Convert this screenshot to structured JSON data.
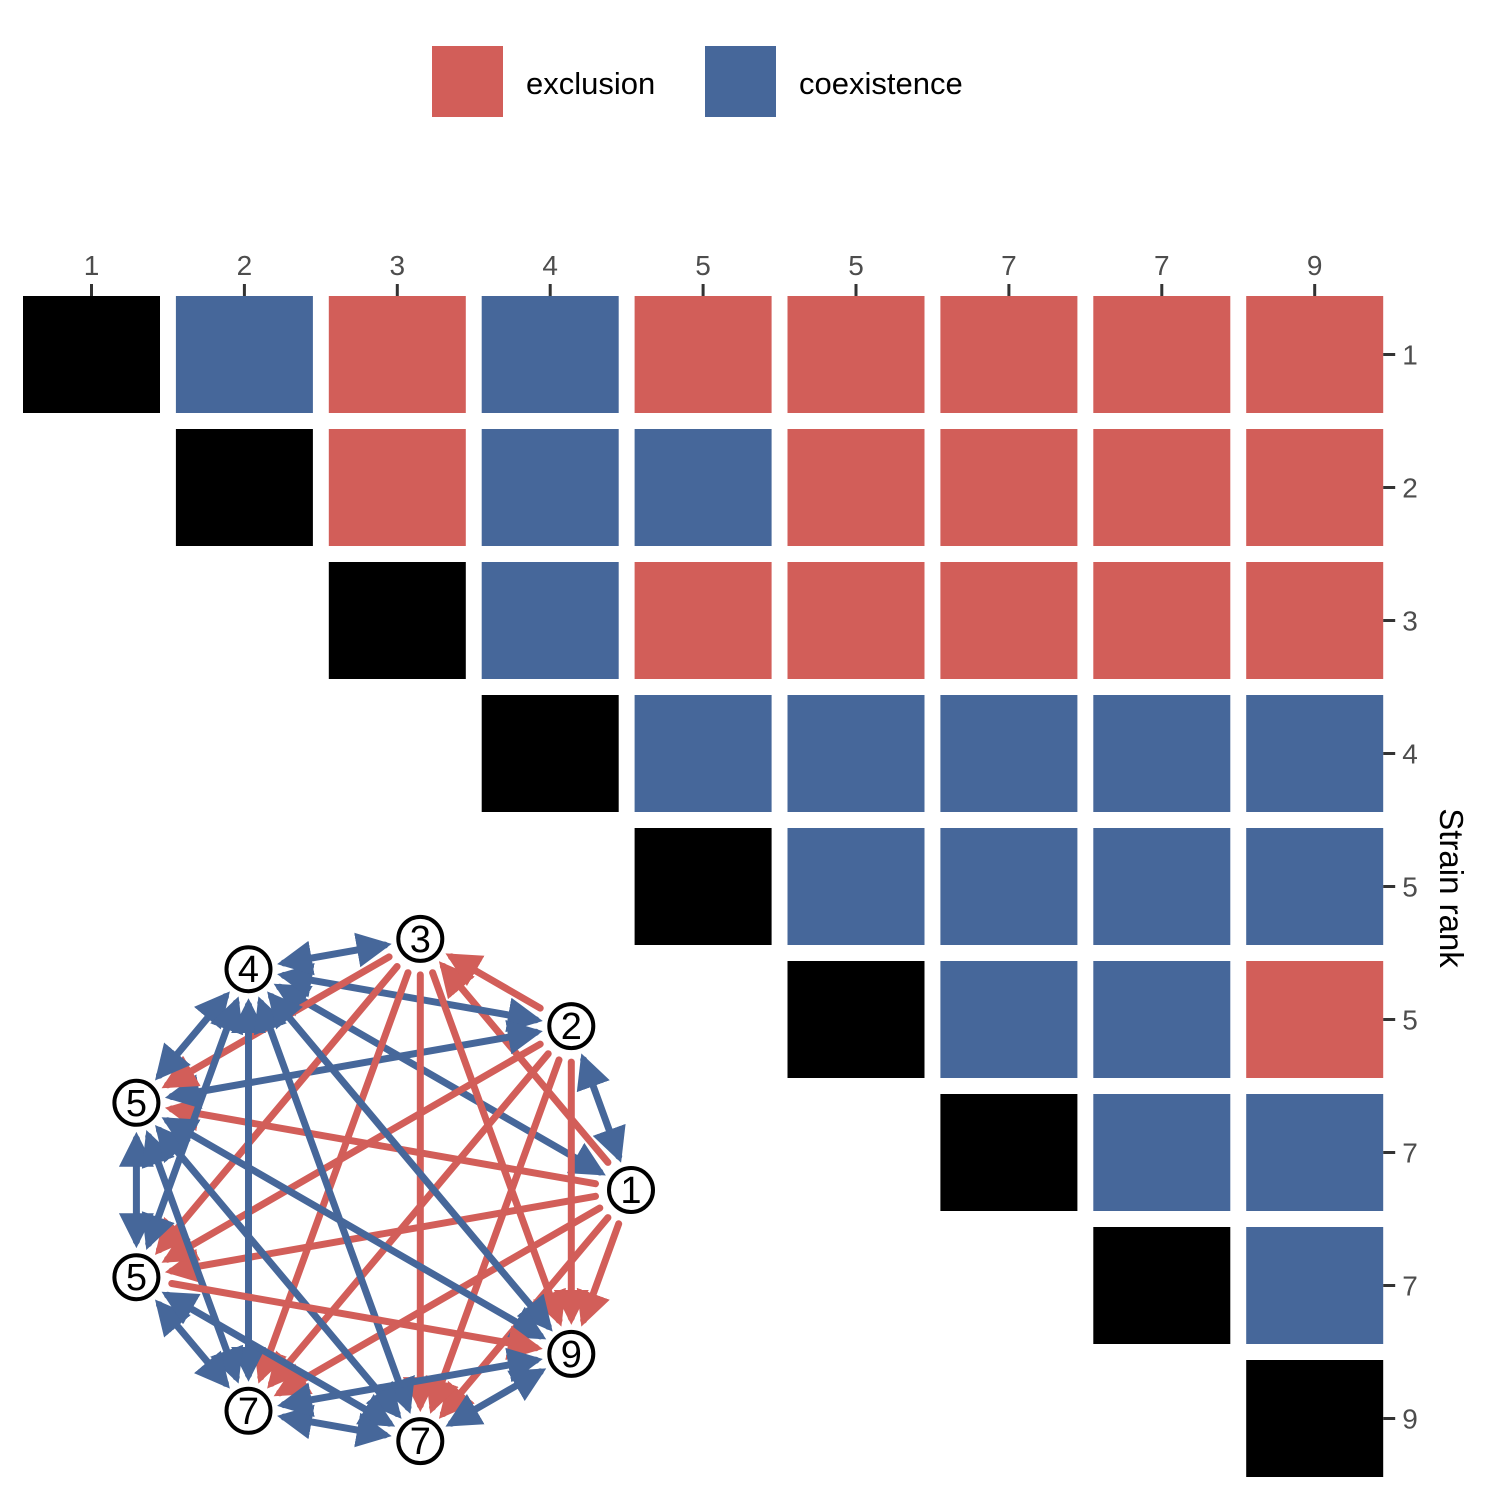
{
  "legend": {
    "placement": "top-center",
    "items": [
      {
        "label": "exclusion",
        "color": "#D25E59"
      },
      {
        "label": "coexistence",
        "color": "#46679A"
      }
    ]
  },
  "colors": {
    "exclusion": "#D25E59",
    "coexistence": "#46679A",
    "diagonal": "#000000",
    "node_fill": "#ffffff",
    "node_stroke": "#000000"
  },
  "chart_data": [
    {
      "type": "heatmap",
      "title": "",
      "ylabel": "Strain rank",
      "x_tick_labels": [
        "1",
        "2",
        "3",
        "4",
        "5",
        "5",
        "7",
        "7",
        "9"
      ],
      "y_tick_labels": [
        "1",
        "2",
        "3",
        "4",
        "5",
        "5",
        "7",
        "7",
        "9"
      ],
      "x_axis_position": "top",
      "y_axis_position": "right",
      "cells": [
        {
          "row": 0,
          "col": 0,
          "value": "self"
        },
        {
          "row": 0,
          "col": 1,
          "value": "coexistence"
        },
        {
          "row": 0,
          "col": 2,
          "value": "exclusion"
        },
        {
          "row": 0,
          "col": 3,
          "value": "coexistence"
        },
        {
          "row": 0,
          "col": 4,
          "value": "exclusion"
        },
        {
          "row": 0,
          "col": 5,
          "value": "exclusion"
        },
        {
          "row": 0,
          "col": 6,
          "value": "exclusion"
        },
        {
          "row": 0,
          "col": 7,
          "value": "exclusion"
        },
        {
          "row": 0,
          "col": 8,
          "value": "exclusion"
        },
        {
          "row": 1,
          "col": 1,
          "value": "self"
        },
        {
          "row": 1,
          "col": 2,
          "value": "exclusion"
        },
        {
          "row": 1,
          "col": 3,
          "value": "coexistence"
        },
        {
          "row": 1,
          "col": 4,
          "value": "coexistence"
        },
        {
          "row": 1,
          "col": 5,
          "value": "exclusion"
        },
        {
          "row": 1,
          "col": 6,
          "value": "exclusion"
        },
        {
          "row": 1,
          "col": 7,
          "value": "exclusion"
        },
        {
          "row": 1,
          "col": 8,
          "value": "exclusion"
        },
        {
          "row": 2,
          "col": 2,
          "value": "self"
        },
        {
          "row": 2,
          "col": 3,
          "value": "coexistence"
        },
        {
          "row": 2,
          "col": 4,
          "value": "exclusion"
        },
        {
          "row": 2,
          "col": 5,
          "value": "exclusion"
        },
        {
          "row": 2,
          "col": 6,
          "value": "exclusion"
        },
        {
          "row": 2,
          "col": 7,
          "value": "exclusion"
        },
        {
          "row": 2,
          "col": 8,
          "value": "exclusion"
        },
        {
          "row": 3,
          "col": 3,
          "value": "self"
        },
        {
          "row": 3,
          "col": 4,
          "value": "coexistence"
        },
        {
          "row": 3,
          "col": 5,
          "value": "coexistence"
        },
        {
          "row": 3,
          "col": 6,
          "value": "coexistence"
        },
        {
          "row": 3,
          "col": 7,
          "value": "coexistence"
        },
        {
          "row": 3,
          "col": 8,
          "value": "coexistence"
        },
        {
          "row": 4,
          "col": 4,
          "value": "self"
        },
        {
          "row": 4,
          "col": 5,
          "value": "coexistence"
        },
        {
          "row": 4,
          "col": 6,
          "value": "coexistence"
        },
        {
          "row": 4,
          "col": 7,
          "value": "coexistence"
        },
        {
          "row": 4,
          "col": 8,
          "value": "coexistence"
        },
        {
          "row": 5,
          "col": 5,
          "value": "self"
        },
        {
          "row": 5,
          "col": 6,
          "value": "coexistence"
        },
        {
          "row": 5,
          "col": 7,
          "value": "coexistence"
        },
        {
          "row": 5,
          "col": 8,
          "value": "exclusion"
        },
        {
          "row": 6,
          "col": 6,
          "value": "self"
        },
        {
          "row": 6,
          "col": 7,
          "value": "coexistence"
        },
        {
          "row": 6,
          "col": 8,
          "value": "coexistence"
        },
        {
          "row": 7,
          "col": 7,
          "value": "self"
        },
        {
          "row": 7,
          "col": 8,
          "value": "coexistence"
        },
        {
          "row": 8,
          "col": 8,
          "value": "self"
        }
      ]
    },
    {
      "type": "network",
      "nodes": [
        {
          "id": 0,
          "label": "1"
        },
        {
          "id": 1,
          "label": "2"
        },
        {
          "id": 2,
          "label": "3"
        },
        {
          "id": 3,
          "label": "4"
        },
        {
          "id": 4,
          "label": "5"
        },
        {
          "id": 5,
          "label": "5"
        },
        {
          "id": 6,
          "label": "7"
        },
        {
          "id": 7,
          "label": "7"
        },
        {
          "id": 8,
          "label": "9"
        }
      ],
      "edges_note_order": "ordered clockwise from node '1'; edges derived from the matrix cells",
      "edges": [
        {
          "source": 0,
          "target": 1,
          "type": "coexistence"
        },
        {
          "source": 0,
          "target": 2,
          "type": "exclusion"
        },
        {
          "source": 0,
          "target": 3,
          "type": "coexistence"
        },
        {
          "source": 0,
          "target": 4,
          "type": "exclusion"
        },
        {
          "source": 0,
          "target": 5,
          "type": "exclusion"
        },
        {
          "source": 0,
          "target": 6,
          "type": "exclusion"
        },
        {
          "source": 0,
          "target": 7,
          "type": "exclusion"
        },
        {
          "source": 0,
          "target": 8,
          "type": "exclusion"
        },
        {
          "source": 1,
          "target": 2,
          "type": "exclusion"
        },
        {
          "source": 1,
          "target": 3,
          "type": "coexistence"
        },
        {
          "source": 1,
          "target": 4,
          "type": "coexistence"
        },
        {
          "source": 1,
          "target": 5,
          "type": "exclusion"
        },
        {
          "source": 1,
          "target": 6,
          "type": "exclusion"
        },
        {
          "source": 1,
          "target": 7,
          "type": "exclusion"
        },
        {
          "source": 1,
          "target": 8,
          "type": "exclusion"
        },
        {
          "source": 2,
          "target": 3,
          "type": "coexistence"
        },
        {
          "source": 2,
          "target": 4,
          "type": "exclusion"
        },
        {
          "source": 2,
          "target": 5,
          "type": "exclusion"
        },
        {
          "source": 2,
          "target": 6,
          "type": "exclusion"
        },
        {
          "source": 2,
          "target": 7,
          "type": "exclusion"
        },
        {
          "source": 2,
          "target": 8,
          "type": "exclusion"
        },
        {
          "source": 3,
          "target": 4,
          "type": "coexistence"
        },
        {
          "source": 3,
          "target": 5,
          "type": "coexistence"
        },
        {
          "source": 3,
          "target": 6,
          "type": "coexistence"
        },
        {
          "source": 3,
          "target": 7,
          "type": "coexistence"
        },
        {
          "source": 3,
          "target": 8,
          "type": "coexistence"
        },
        {
          "source": 4,
          "target": 5,
          "type": "coexistence"
        },
        {
          "source": 4,
          "target": 6,
          "type": "coexistence"
        },
        {
          "source": 4,
          "target": 7,
          "type": "coexistence"
        },
        {
          "source": 4,
          "target": 8,
          "type": "coexistence"
        },
        {
          "source": 5,
          "target": 6,
          "type": "coexistence"
        },
        {
          "source": 5,
          "target": 7,
          "type": "coexistence"
        },
        {
          "source": 5,
          "target": 8,
          "type": "exclusion"
        },
        {
          "source": 6,
          "target": 7,
          "type": "coexistence"
        },
        {
          "source": 6,
          "target": 8,
          "type": "coexistence"
        },
        {
          "source": 7,
          "target": 8,
          "type": "coexistence"
        }
      ]
    }
  ]
}
